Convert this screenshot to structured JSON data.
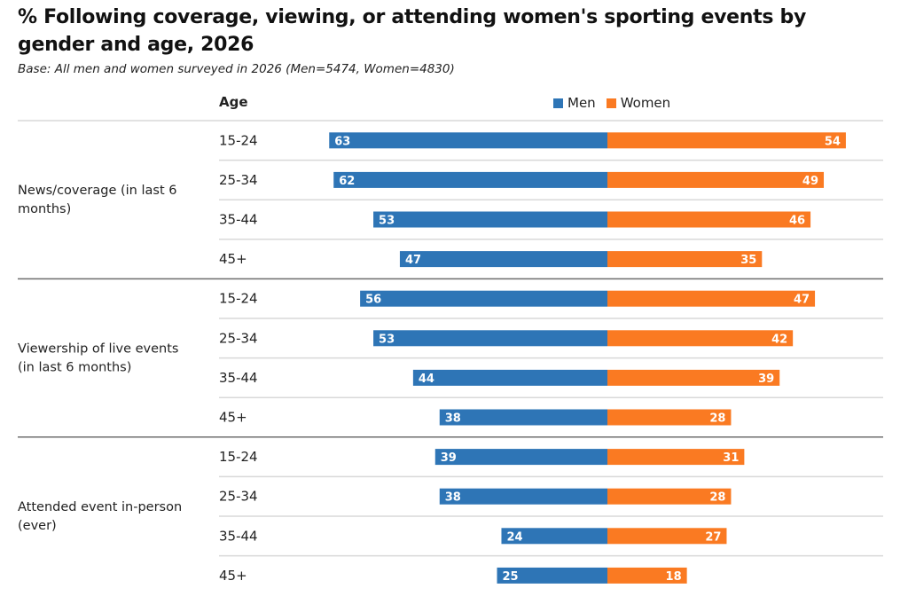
{
  "chart_data": {
    "type": "bar",
    "orientation": "horizontal-diverging",
    "title": "% Following coverage, viewing, or attending women's sporting events by gender and age, 2026",
    "subtitle": "Base: All men and women surveyed in 2026 (Men=5474, Women=4830)",
    "row_header": "Age",
    "legend": [
      {
        "name": "Men",
        "color": "#2e75b6"
      },
      {
        "name": "Women",
        "color": "#fa7a22"
      }
    ],
    "legend_position": "top-right",
    "xlim": [
      -63,
      63
    ],
    "groups": [
      {
        "label": "News/coverage (in last 6 months)",
        "label_lines": [
          "News/coverage (in last 6",
          "months)"
        ],
        "categories": [
          "15-24",
          "25-34",
          "35-44",
          "45+"
        ],
        "series": [
          {
            "name": "Men",
            "values": [
              63,
              62,
              53,
              47
            ]
          },
          {
            "name": "Women",
            "values": [
              54,
              49,
              46,
              35
            ]
          }
        ]
      },
      {
        "label": "Viewership of live events (in last 6 months)",
        "label_lines": [
          "Viewership of live events",
          "(in last 6 months)"
        ],
        "categories": [
          "15-24",
          "25-34",
          "35-44",
          "45+"
        ],
        "series": [
          {
            "name": "Men",
            "values": [
              56,
              53,
              44,
              38
            ]
          },
          {
            "name": "Women",
            "values": [
              47,
              42,
              39,
              28
            ]
          }
        ]
      },
      {
        "label": "Attended event in-person (ever)",
        "label_lines": [
          "Attended event in-person",
          "(ever)"
        ],
        "categories": [
          "15-24",
          "25-34",
          "35-44",
          "45+"
        ],
        "series": [
          {
            "name": "Men",
            "values": [
              39,
              38,
              24,
              25
            ]
          },
          {
            "name": "Women",
            "values": [
              31,
              28,
              27,
              18
            ]
          }
        ]
      }
    ]
  }
}
